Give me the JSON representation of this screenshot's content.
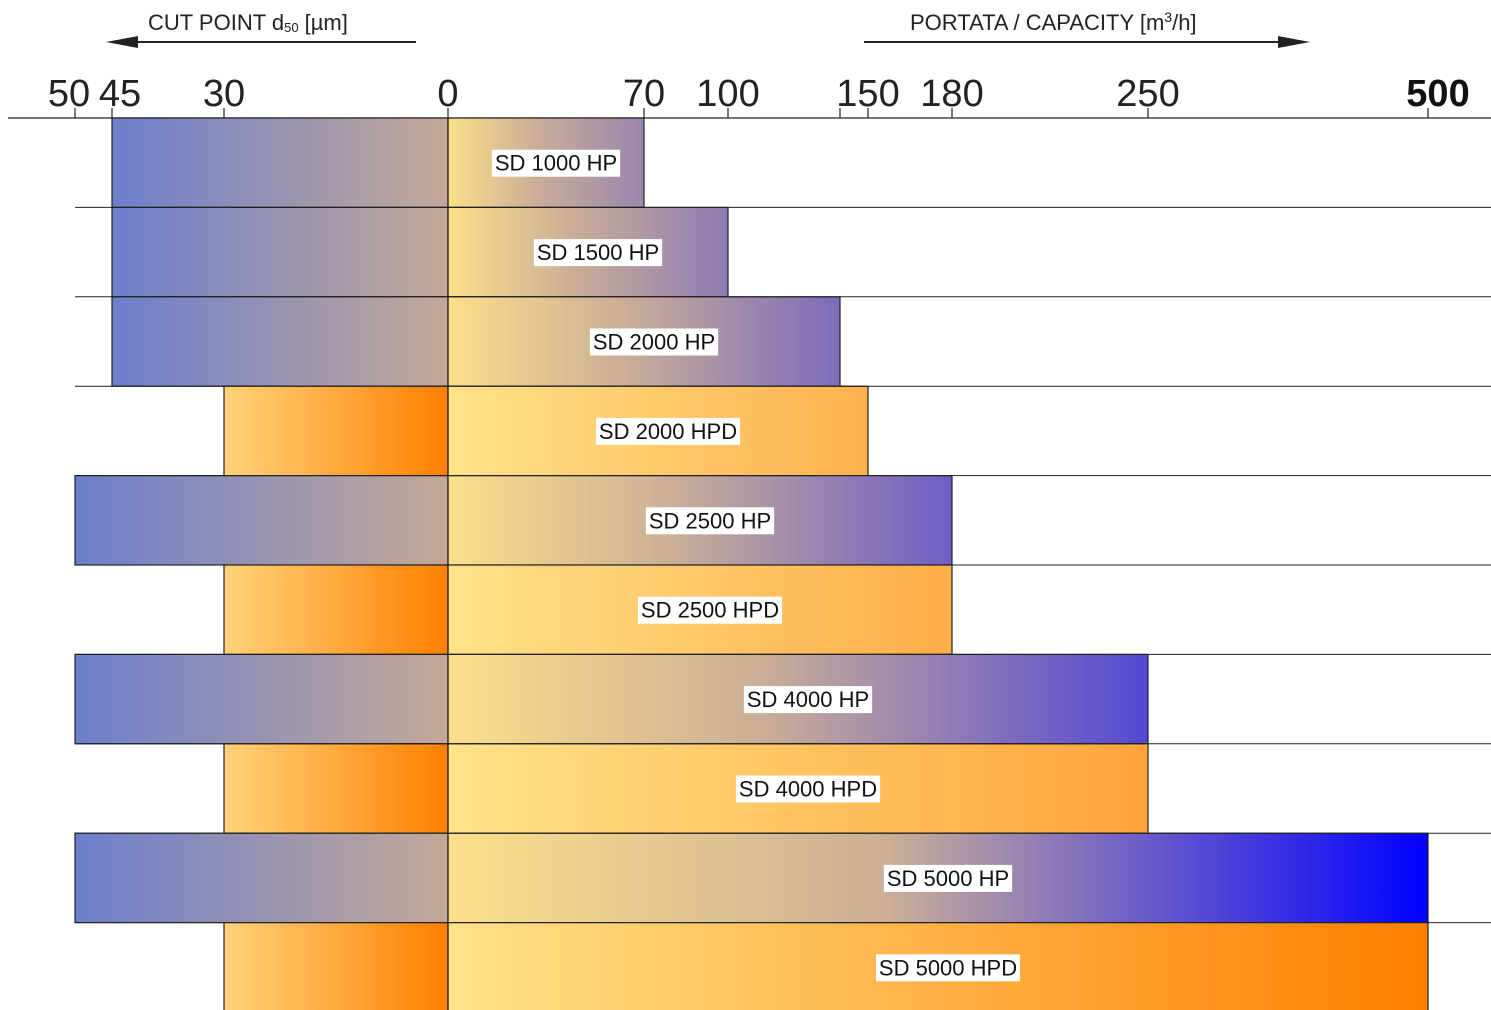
{
  "chart_data": {
    "type": "bar",
    "left_axis": {
      "title": "CUT POINT d",
      "title_subscript": "50",
      "title_unit": "[µm]",
      "ticks": [
        "50",
        "45",
        "30",
        "0"
      ]
    },
    "right_axis": {
      "title_prefix": "PORTATA / CAPACITY [m",
      "title_superscript": "3",
      "title_suffix": "/h]",
      "ticks": [
        "0",
        "70",
        "100",
        "150",
        "180",
        "250",
        "500"
      ]
    },
    "categories": [
      "SD 1000 HP",
      "SD 1500 HP",
      "SD 2000 HP",
      "SD 2000 HPD",
      "SD 2500 HP",
      "SD 2500 HPD",
      "SD 4000 HP",
      "SD 4000 HPD",
      "SD 5000 HP",
      "SD 5000 HPD"
    ],
    "series": [
      {
        "name": "",
        "values": [
          45,
          45,
          45,
          30,
          50,
          30,
          50,
          30,
          50,
          30
        ]
      },
      {
        "name": "",
        "values": [
          70,
          100,
          140,
          150,
          180,
          180,
          250,
          250,
          500,
          500
        ]
      }
    ],
    "families": [
      "HP",
      "HP",
      "HP",
      "HPD",
      "HP",
      "HPD",
      "HP",
      "HPD",
      "HP",
      "HPD"
    ],
    "colors": {
      "hp_cut_start": "#6b7fcc",
      "hp_cut_end": "#c4a898",
      "hp_cap_start": "#fbe08a",
      "hp_cap_max_end": "#0000ff",
      "hpd_cut_start": "#ffd27a",
      "hpd_cut_end": "#ff7f00",
      "hpd_cap_start": "#ffe38a",
      "hpd_cap_max_end": "#ff7f00",
      "line": "#222222"
    },
    "grid": true
  }
}
